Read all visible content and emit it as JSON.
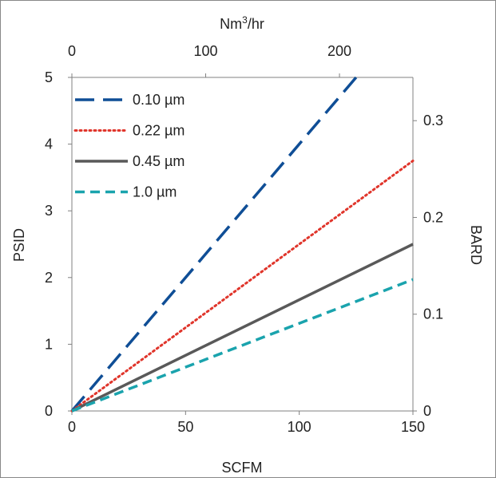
{
  "chart_data": {
    "type": "line",
    "title": "",
    "xlabel": "SCFM",
    "ylabel": "PSID",
    "x2label_main": "Nm",
    "x2label_sup": "3",
    "x2label_tail": "/hr",
    "y2label": "BARD",
    "xlim": [
      0,
      150
    ],
    "ylim": [
      0,
      5
    ],
    "x2lim": [
      0,
      254.9
    ],
    "y2lim": [
      0,
      0.3447
    ],
    "xticks": [
      "0",
      "50",
      "100",
      "150"
    ],
    "yticks": [
      "0",
      "1",
      "2",
      "3",
      "4",
      "5"
    ],
    "x2ticks": [
      "0",
      "100",
      "200"
    ],
    "y2ticks": [
      "0",
      "0.1",
      "0.2",
      "0.3"
    ],
    "grid": false,
    "legend_position": "top-left",
    "series": [
      {
        "name": "0.10 µm",
        "color": "#0f4e96",
        "dash": "long-dash",
        "x": [
          0,
          125
        ],
        "y": [
          0,
          5
        ]
      },
      {
        "name": "0.22 µm",
        "color": "#e0352b",
        "dash": "dotted",
        "x": [
          0,
          150
        ],
        "y": [
          0,
          3.75
        ]
      },
      {
        "name": "0.45 µm",
        "color": "#595959",
        "dash": "solid",
        "x": [
          0,
          150
        ],
        "y": [
          0,
          2.5
        ]
      },
      {
        "name": "1.0 µm",
        "color": "#1aa3ad",
        "dash": "dash",
        "x": [
          0,
          150
        ],
        "y": [
          0,
          1.97
        ]
      }
    ]
  }
}
